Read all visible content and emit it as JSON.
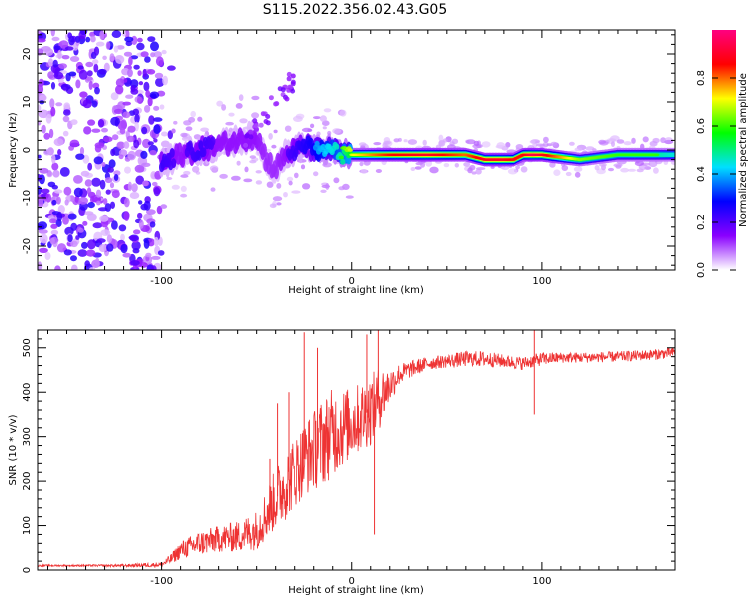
{
  "title": "S115.2022.356.02.43.G05",
  "chart_data": [
    {
      "type": "heatmap",
      "title": "S115.2022.356.02.43.G05",
      "xlabel": "Height of straight line (km)",
      "ylabel": "Frequency (Hz)",
      "xlim": [
        -165,
        170
      ],
      "ylim": [
        -25,
        25
      ],
      "xticks": [
        -100,
        0,
        100
      ],
      "xtick_labels": [
        "-100",
        "0",
        "100"
      ],
      "yticks": [
        -20,
        -10,
        0,
        10,
        20
      ],
      "ytick_labels": [
        "-20",
        "-10",
        "0",
        "10",
        "20"
      ],
      "colorbar": {
        "label": "Normalized spectral amplitude",
        "range": [
          0,
          1
        ],
        "ticks": [
          0.0,
          0.2,
          0.4,
          0.6,
          0.8
        ],
        "tick_labels": [
          "0.0",
          "0.2",
          "0.4",
          "0.6",
          "0.8"
        ],
        "colors": [
          "#ffffff",
          "#8a00ff",
          "#0000ff",
          "#00e0ff",
          "#00ff00",
          "#ffff00",
          "#ff0000",
          "#ff0080"
        ]
      },
      "ridge": {
        "x": [
          -100,
          -90,
          -80,
          -70,
          -60,
          -50,
          -45,
          -40,
          -35,
          -30,
          -25,
          -20,
          -15,
          -10,
          -5,
          0,
          20,
          40,
          60,
          70,
          80,
          85,
          90,
          95,
          100,
          120,
          140,
          160,
          170
        ],
        "y": [
          -3,
          -1,
          0,
          1,
          2,
          3,
          -2,
          -4,
          -1,
          0,
          1,
          0,
          0,
          0,
          -1,
          -1,
          -1,
          -1,
          -1,
          -2,
          -2,
          -2,
          -1,
          -1,
          -1,
          -2,
          -1,
          -1,
          -1
        ],
        "amplitude": [
          0.35,
          0.3,
          0.35,
          0.3,
          0.3,
          0.3,
          0.25,
          0.25,
          0.3,
          0.35,
          0.4,
          0.45,
          0.5,
          0.55,
          0.6,
          0.7,
          0.85,
          0.9,
          0.8,
          0.9,
          0.9,
          0.85,
          0.85,
          0.95,
          0.9,
          0.65,
          0.6,
          0.6,
          0.55
        ]
      },
      "noise_region_x": [
        -165,
        -100
      ]
    },
    {
      "type": "line",
      "xlabel": "Height of straight line (km)",
      "ylabel": "SNR (10 * v/v)",
      "xlim": [
        -165,
        170
      ],
      "ylim": [
        0,
        540
      ],
      "xticks": [
        -100,
        0,
        100
      ],
      "xtick_labels": [
        "-100",
        "0",
        "100"
      ],
      "yticks": [
        0,
        100,
        200,
        300,
        400,
        500
      ],
      "ytick_labels": [
        "0",
        "100",
        "200",
        "300",
        "400",
        "500"
      ],
      "color": "#ee3333",
      "series": [
        {
          "name": "SNR",
          "x": [
            -165,
            -140,
            -120,
            -100,
            -95,
            -90,
            -80,
            -70,
            -60,
            -50,
            -40,
            -35,
            -30,
            -25,
            -20,
            -15,
            -10,
            -5,
            0,
            5,
            10,
            15,
            20,
            25,
            30,
            40,
            50,
            60,
            70,
            80,
            90,
            95,
            100,
            110,
            120,
            140,
            160,
            170
          ],
          "y": [
            10,
            10,
            10,
            12,
            25,
            45,
            60,
            70,
            75,
            90,
            160,
            190,
            220,
            250,
            270,
            290,
            310,
            320,
            330,
            345,
            360,
            390,
            415,
            440,
            450,
            465,
            470,
            475,
            475,
            470,
            465,
            470,
            475,
            478,
            478,
            480,
            485,
            490
          ],
          "noise": [
            2,
            2,
            3,
            6,
            12,
            20,
            28,
            30,
            35,
            45,
            70,
            80,
            80,
            85,
            90,
            100,
            100,
            90,
            80,
            80,
            80,
            70,
            40,
            25,
            20,
            15,
            15,
            18,
            18,
            15,
            15,
            15,
            15,
            12,
            12,
            12,
            12,
            12
          ]
        }
      ],
      "spikes": [
        {
          "x": -43,
          "y": 250
        },
        {
          "x": -39,
          "y": 375
        },
        {
          "x": -33,
          "y": 400
        },
        {
          "x": -25,
          "y": 535
        },
        {
          "x": -18,
          "y": 500
        },
        {
          "x": 8,
          "y": 530
        },
        {
          "x": 12,
          "y": 80
        },
        {
          "x": 14,
          "y": 540
        },
        {
          "x": 96,
          "y": 540
        },
        {
          "x": 96,
          "y": 350
        }
      ]
    }
  ]
}
